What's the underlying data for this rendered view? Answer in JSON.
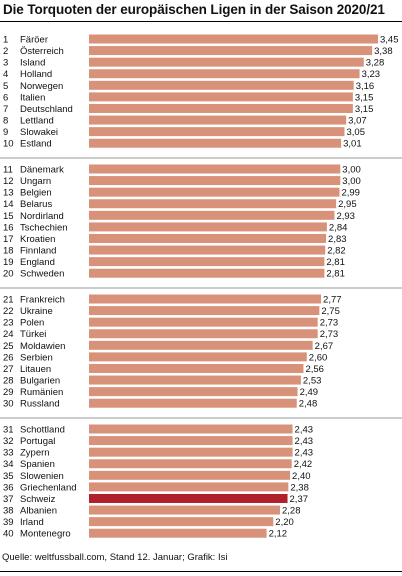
{
  "header": {
    "title": "Die Torquoten der europäischen Ligen in der Saison 2020/21"
  },
  "footer": {
    "source": "Quelle: weltfussball.com, Stand 12. Januar; Grafik: Isi"
  },
  "colors": {
    "bar": "#d9927a",
    "highlight": "#b0202a",
    "separator": "#999999",
    "text": "#111111"
  },
  "chart_data": {
    "type": "bar",
    "orientation": "horizontal",
    "categories": [
      "Färöer",
      "Österreich",
      "Island",
      "Holland",
      "Norwegen",
      "Italien",
      "Deutschland",
      "Lettland",
      "Slowakei",
      "Estland",
      "Dänemark",
      "Ungarn",
      "Belgien",
      "Belarus",
      "Nordirland",
      "Tschechien",
      "Kroatien",
      "Finnland",
      "England",
      "Schweden",
      "Frankreich",
      "Ukraine",
      "Polen",
      "Türkei",
      "Moldawien",
      "Serbien",
      "Litauen",
      "Bulgarien",
      "Rumänien",
      "Russland",
      "Schottland",
      "Portugal",
      "Zypern",
      "Spanien",
      "Slowenien",
      "Griechenland",
      "Schweiz",
      "Albanien",
      "Irland",
      "Montenegro"
    ],
    "ranks": [
      "1",
      "2",
      "3",
      "4",
      "5",
      "6",
      "7",
      "8",
      "9",
      "10",
      "11",
      "12",
      "13",
      "14",
      "15",
      "16",
      "17",
      "18",
      "19",
      "20",
      "21",
      "22",
      "23",
      "24",
      "25",
      "26",
      "27",
      "28",
      "29",
      "30",
      "31",
      "32",
      "33",
      "34",
      "35",
      "36",
      "37",
      "38",
      "39",
      "40"
    ],
    "values": [
      3.45,
      3.38,
      3.28,
      3.23,
      3.16,
      3.15,
      3.15,
      3.07,
      3.05,
      3.01,
      3.0,
      3.0,
      2.99,
      2.95,
      2.93,
      2.84,
      2.83,
      2.82,
      2.81,
      2.81,
      2.77,
      2.75,
      2.73,
      2.73,
      2.67,
      2.6,
      2.56,
      2.53,
      2.49,
      2.48,
      2.43,
      2.43,
      2.43,
      2.42,
      2.4,
      2.38,
      2.37,
      2.28,
      2.2,
      2.12
    ],
    "value_labels": [
      "3,45",
      "3,38",
      "3,28",
      "3,23",
      "3,16",
      "3,15",
      "3,15",
      "3,07",
      "3,05",
      "3,01",
      "3,00",
      "3,00",
      "2,99",
      "2,95",
      "2,93",
      "2,84",
      "2,83",
      "2,82",
      "2,81",
      "2,81",
      "2,77",
      "2,75",
      "2,73",
      "2,73",
      "2,67",
      "2,60",
      "2,56",
      "2,53",
      "2,49",
      "2,48",
      "2,43",
      "2,43",
      "2,43",
      "2,42",
      "2,40",
      "2,38",
      "2,37",
      "2,28",
      "2,20",
      "2,12"
    ],
    "highlight": "Schweiz",
    "xlim": [
      0,
      3.45
    ],
    "groups": 4,
    "grid": false
  }
}
